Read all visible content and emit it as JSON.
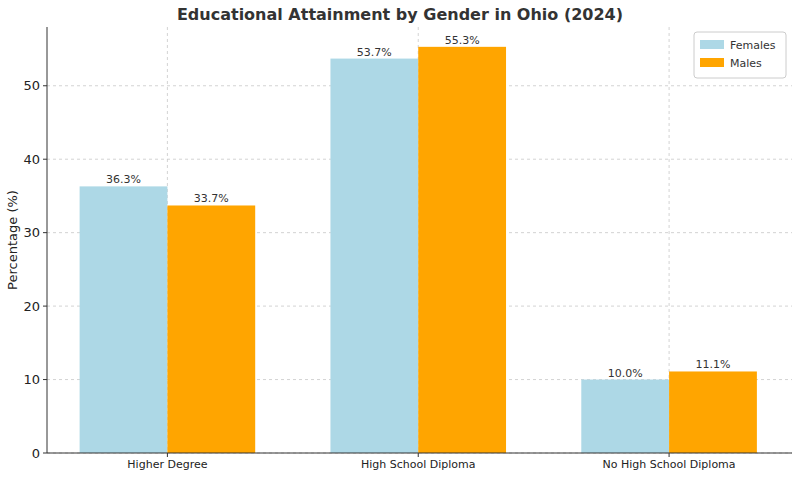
{
  "chart_data": {
    "type": "bar",
    "title": "Educational Attainment by Gender in Ohio (2024)",
    "y_label": "Percentage (%)",
    "categories": [
      "Higher Degree",
      "High School Diploma",
      "No High School Diploma"
    ],
    "series": [
      {
        "name": "Females",
        "color": "#add8e6",
        "values": [
          36.3,
          53.7,
          10.0
        ],
        "value_labels": [
          "36.3%",
          "53.7%",
          "10.0%"
        ]
      },
      {
        "name": "Males",
        "color": "#ffa500",
        "values": [
          33.7,
          55.3,
          11.1
        ],
        "value_labels": [
          "33.7%",
          "55.3%",
          "11.1%"
        ]
      }
    ],
    "ylim": [
      0,
      58
    ],
    "yticks": [
      0,
      10,
      20,
      30,
      40,
      50
    ],
    "grid": true,
    "legend": "upper right",
    "data_labels": true
  }
}
